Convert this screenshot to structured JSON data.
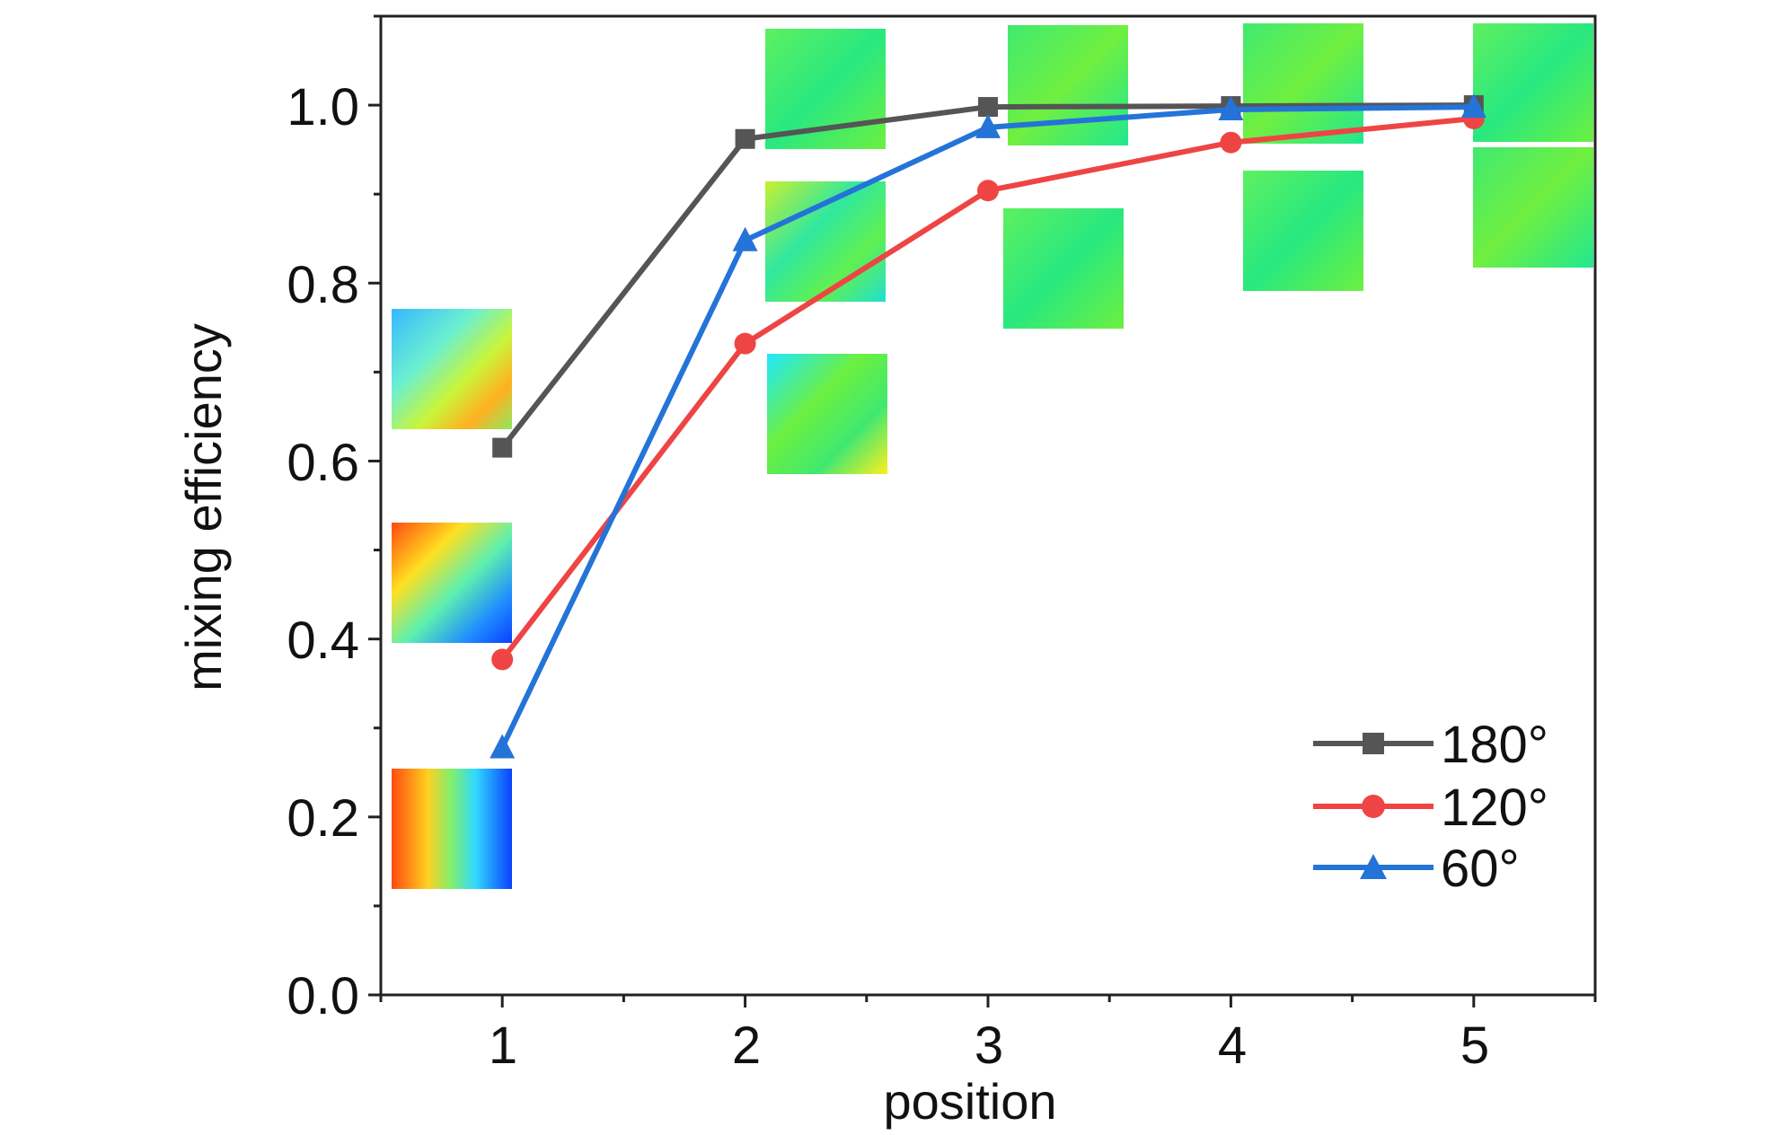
{
  "chart_data": {
    "type": "line",
    "xlabel": "position",
    "ylabel": "mixing efficiency",
    "x": [
      1,
      2,
      3,
      4,
      5
    ],
    "xlim": [
      0.5,
      5.5
    ],
    "ylim": [
      0.0,
      1.1
    ],
    "x_ticks": [
      "1",
      "2",
      "3",
      "4",
      "5"
    ],
    "y_ticks": [
      "0.0",
      "0.2",
      "0.4",
      "0.6",
      "0.8",
      "1.0"
    ],
    "grid": false,
    "legend_position": "bottom-right",
    "series": [
      {
        "name": "180°",
        "color": "#555555",
        "marker": "square",
        "values": [
          0.615,
          0.962,
          0.998,
          0.999,
          1.0
        ]
      },
      {
        "name": "120°",
        "color": "#ef4444",
        "marker": "circle",
        "values": [
          0.377,
          0.732,
          0.904,
          0.958,
          0.985
        ]
      },
      {
        "name": "60°",
        "color": "#2474d8",
        "marker": "triangle",
        "values": [
          0.278,
          0.848,
          0.975,
          0.995,
          0.998
        ]
      }
    ],
    "annotations": "inset contour-map thumbnails of concentration cross-sections at each position"
  }
}
